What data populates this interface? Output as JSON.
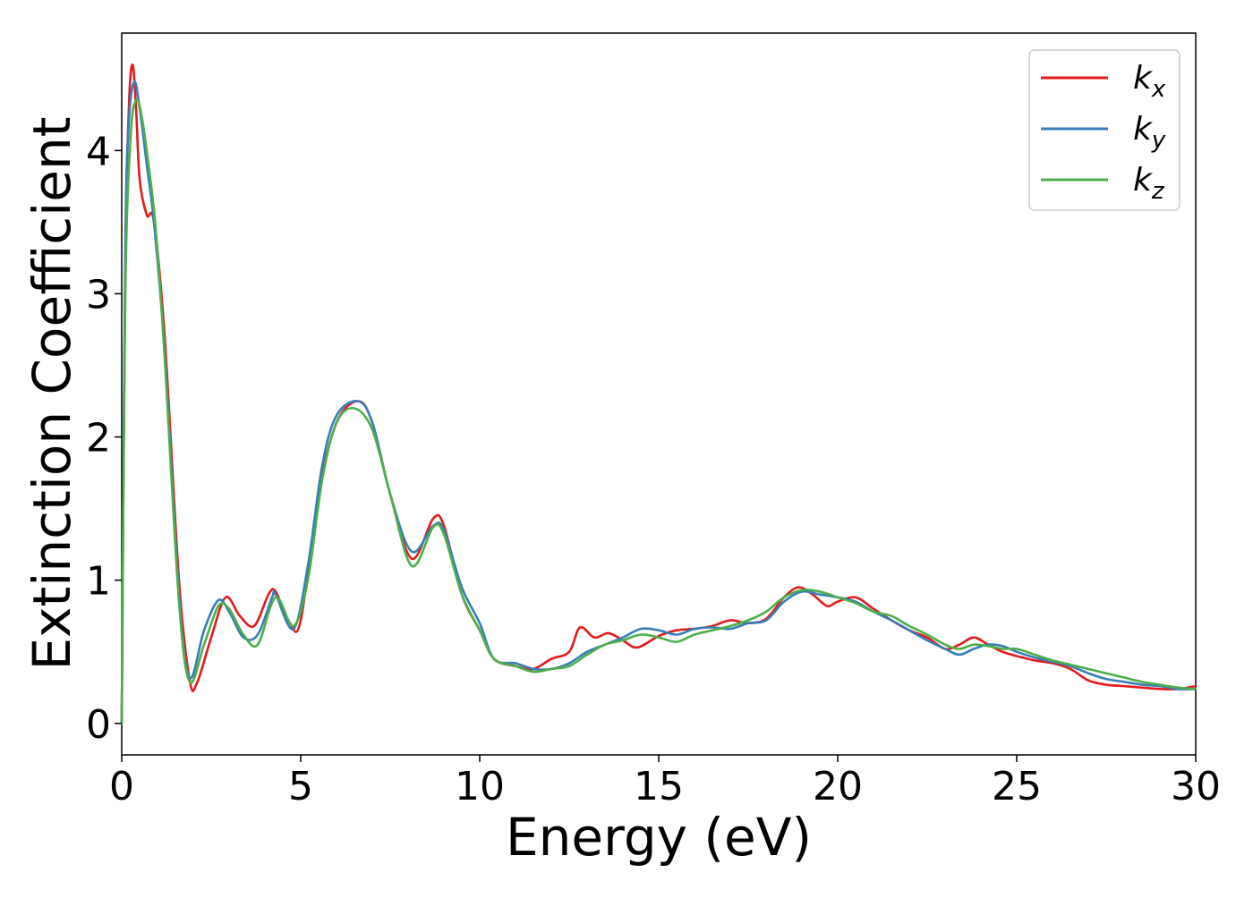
{
  "chart_data": {
    "type": "line",
    "title": "",
    "xlabel": "Energy (eV)",
    "ylabel": "Extinction Coefficient",
    "xlim": [
      0,
      30
    ],
    "ylim": [
      -0.22,
      4.82
    ],
    "xticks": [
      0,
      5,
      10,
      15,
      20,
      25,
      30
    ],
    "xtick_labels": [
      "0",
      "5",
      "10",
      "15",
      "20",
      "25",
      "30"
    ],
    "yticks": [
      0,
      1,
      2,
      3,
      4
    ],
    "ytick_labels": [
      "0",
      "1",
      "2",
      "3",
      "4"
    ],
    "grid": false,
    "legend_position": "top-right",
    "series": [
      {
        "name": "k_x",
        "label_main": "k",
        "label_sub": "x",
        "color": "#e41a1c",
        "x": [
          0,
          0.1,
          0.2,
          0.3,
          0.4,
          0.5,
          0.7,
          0.9,
          1.2,
          1.6,
          1.9,
          2.1,
          2.5,
          2.9,
          3.3,
          3.7,
          4.1,
          4.3,
          4.7,
          5.0,
          5.5,
          6.0,
          6.6,
          7.0,
          7.5,
          8.1,
          8.7,
          9.0,
          9.5,
          10.0,
          10.4,
          11.0,
          11.5,
          12.0,
          12.5,
          12.8,
          13.2,
          13.6,
          14.0,
          14.4,
          15.0,
          15.5,
          16.0,
          16.5,
          17.0,
          17.5,
          18.0,
          18.5,
          18.9,
          19.3,
          19.7,
          20.0,
          20.5,
          21.0,
          21.5,
          22.0,
          22.5,
          23.0,
          23.4,
          23.8,
          24.2,
          24.6,
          25.0,
          25.5,
          26.0,
          26.5,
          27.0,
          27.5,
          28.0,
          28.5,
          29.0,
          29.5,
          30.0
        ],
        "values": [
          0.0,
          3.2,
          4.3,
          4.6,
          4.3,
          3.8,
          3.55,
          3.5,
          2.7,
          1.0,
          0.3,
          0.28,
          0.6,
          0.88,
          0.75,
          0.68,
          0.9,
          0.92,
          0.7,
          0.72,
          1.6,
          2.1,
          2.25,
          2.1,
          1.6,
          1.15,
          1.43,
          1.38,
          0.9,
          0.65,
          0.45,
          0.4,
          0.38,
          0.45,
          0.5,
          0.67,
          0.6,
          0.63,
          0.58,
          0.53,
          0.61,
          0.65,
          0.66,
          0.68,
          0.72,
          0.7,
          0.73,
          0.88,
          0.95,
          0.9,
          0.82,
          0.85,
          0.88,
          0.8,
          0.72,
          0.65,
          0.6,
          0.52,
          0.55,
          0.6,
          0.55,
          0.5,
          0.47,
          0.44,
          0.42,
          0.38,
          0.3,
          0.27,
          0.26,
          0.25,
          0.24,
          0.24,
          0.26
        ]
      },
      {
        "name": "k_y",
        "label_main": "k",
        "label_sub": "y",
        "color": "#377eb8",
        "x": [
          0,
          0.1,
          0.2,
          0.35,
          0.5,
          0.7,
          0.9,
          1.2,
          1.6,
          1.9,
          2.3,
          2.7,
          3.0,
          3.4,
          3.8,
          4.2,
          4.3,
          4.8,
          5.2,
          5.6,
          6.0,
          6.6,
          7.0,
          7.5,
          8.1,
          8.7,
          9.0,
          9.5,
          10.0,
          10.4,
          11.0,
          11.5,
          12.0,
          12.5,
          13.0,
          13.5,
          14.0,
          14.5,
          15.0,
          15.5,
          16.0,
          16.5,
          17.0,
          17.5,
          18.0,
          18.5,
          19.0,
          19.5,
          20.0,
          20.5,
          21.0,
          21.5,
          22.0,
          22.5,
          23.0,
          23.4,
          23.8,
          24.2,
          24.6,
          25.0,
          25.5,
          26.0,
          26.5,
          27.0,
          27.5,
          28.0,
          28.5,
          29.0,
          29.5,
          30.0
        ],
        "values": [
          0.0,
          3.3,
          4.2,
          4.48,
          4.3,
          3.9,
          3.5,
          2.6,
          0.9,
          0.32,
          0.65,
          0.86,
          0.78,
          0.6,
          0.62,
          0.88,
          0.9,
          0.66,
          1.1,
          1.8,
          2.15,
          2.25,
          2.1,
          1.6,
          1.2,
          1.38,
          1.35,
          0.95,
          0.7,
          0.45,
          0.42,
          0.38,
          0.38,
          0.42,
          0.5,
          0.55,
          0.6,
          0.66,
          0.65,
          0.62,
          0.66,
          0.67,
          0.66,
          0.7,
          0.72,
          0.85,
          0.92,
          0.9,
          0.88,
          0.85,
          0.78,
          0.72,
          0.65,
          0.58,
          0.52,
          0.48,
          0.52,
          0.55,
          0.54,
          0.5,
          0.46,
          0.43,
          0.4,
          0.35,
          0.31,
          0.29,
          0.27,
          0.26,
          0.24,
          0.24
        ]
      },
      {
        "name": "k_z",
        "label_main": "k",
        "label_sub": "z",
        "color": "#4daf4a",
        "x": [
          0,
          0.1,
          0.25,
          0.4,
          0.55,
          0.75,
          0.95,
          1.2,
          1.6,
          1.9,
          2.3,
          2.7,
          3.0,
          3.4,
          3.8,
          4.3,
          4.8,
          5.2,
          5.6,
          6.0,
          6.5,
          7.0,
          7.5,
          8.1,
          8.7,
          9.0,
          9.5,
          10.0,
          10.4,
          11.0,
          11.5,
          12.0,
          12.5,
          13.0,
          13.5,
          14.0,
          14.5,
          15.0,
          15.5,
          16.0,
          16.5,
          17.0,
          17.5,
          18.0,
          18.5,
          19.0,
          19.5,
          20.0,
          20.5,
          21.0,
          21.5,
          22.0,
          22.5,
          23.0,
          23.4,
          23.8,
          24.2,
          24.6,
          25.0,
          25.5,
          26.0,
          26.5,
          27.0,
          27.5,
          28.0,
          28.5,
          29.0,
          29.5,
          30.0
        ],
        "values": [
          0.0,
          3.0,
          4.1,
          4.35,
          4.25,
          3.9,
          3.45,
          2.55,
          0.85,
          0.29,
          0.55,
          0.82,
          0.8,
          0.62,
          0.55,
          0.88,
          0.68,
          1.0,
          1.7,
          2.1,
          2.2,
          2.05,
          1.6,
          1.1,
          1.37,
          1.32,
          0.9,
          0.65,
          0.45,
          0.4,
          0.36,
          0.38,
          0.4,
          0.48,
          0.55,
          0.58,
          0.62,
          0.6,
          0.57,
          0.62,
          0.65,
          0.68,
          0.72,
          0.78,
          0.88,
          0.93,
          0.92,
          0.88,
          0.84,
          0.78,
          0.75,
          0.68,
          0.62,
          0.55,
          0.52,
          0.55,
          0.54,
          0.52,
          0.52,
          0.48,
          0.44,
          0.41,
          0.38,
          0.35,
          0.32,
          0.29,
          0.27,
          0.25,
          0.24
        ]
      }
    ]
  }
}
